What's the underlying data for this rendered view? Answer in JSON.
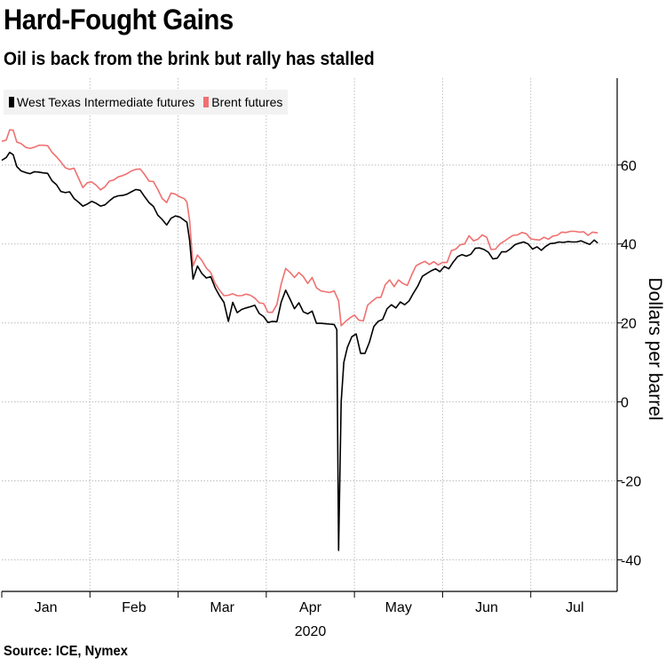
{
  "header": {
    "title": "Hard-Fought Gains",
    "subtitle": "Oil is back from the brink but rally has stalled"
  },
  "footer": {
    "source": "Source: ICE, Nymex"
  },
  "colors": {
    "wti": "#000000",
    "brent": "#f07070",
    "grid": "#bdbdbd",
    "legend_bg": "#f2f2f2"
  },
  "chart_data": {
    "type": "line",
    "title": "Hard-Fought Gains",
    "subtitle": "Oil is back from the brink but rally has stalled",
    "xlabel": "2020",
    "ylabel": "Dollars per barrel",
    "ylim": [
      -48,
      82
    ],
    "yticks": [
      -40,
      -20,
      0,
      20,
      40,
      60
    ],
    "xlim": [
      0,
      6.98
    ],
    "x_unit": "months since Jan 1, 2020",
    "month_labels": [
      "Jan",
      "Feb",
      "Mar",
      "Apr",
      "May",
      "Jun",
      "Jul"
    ],
    "grid": true,
    "legend_position": "top-left",
    "series": [
      {
        "name": "West Texas Intermediate futures",
        "color": "#000000",
        "points": [
          [
            0.0,
            61.2
          ],
          [
            0.05,
            61.9
          ],
          [
            0.09,
            63.2
          ],
          [
            0.13,
            62.6
          ],
          [
            0.17,
            59.6
          ],
          [
            0.22,
            58.5
          ],
          [
            0.27,
            58.1
          ],
          [
            0.32,
            57.8
          ],
          [
            0.37,
            58.3
          ],
          [
            0.42,
            58.2
          ],
          [
            0.47,
            58.0
          ],
          [
            0.52,
            57.9
          ],
          [
            0.57,
            56.0
          ],
          [
            0.62,
            55.0
          ],
          [
            0.67,
            53.3
          ],
          [
            0.72,
            53.0
          ],
          [
            0.77,
            53.2
          ],
          [
            0.82,
            51.5
          ],
          [
            0.87,
            50.6
          ],
          [
            0.92,
            49.6
          ],
          [
            0.97,
            50.1
          ],
          [
            1.02,
            50.8
          ],
          [
            1.07,
            50.3
          ],
          [
            1.12,
            49.6
          ],
          [
            1.17,
            49.9
          ],
          [
            1.22,
            50.9
          ],
          [
            1.27,
            51.8
          ],
          [
            1.32,
            52.2
          ],
          [
            1.37,
            52.3
          ],
          [
            1.42,
            52.6
          ],
          [
            1.47,
            53.2
          ],
          [
            1.52,
            53.8
          ],
          [
            1.57,
            53.6
          ],
          [
            1.62,
            52.0
          ],
          [
            1.67,
            50.5
          ],
          [
            1.72,
            49.5
          ],
          [
            1.77,
            47.3
          ],
          [
            1.82,
            46.2
          ],
          [
            1.87,
            44.8
          ],
          [
            1.92,
            46.5
          ],
          [
            1.97,
            47.1
          ],
          [
            2.02,
            46.8
          ],
          [
            2.07,
            46.0
          ],
          [
            2.1,
            45.5
          ],
          [
            2.13,
            41.0
          ],
          [
            2.17,
            31.1
          ],
          [
            2.22,
            34.4
          ],
          [
            2.27,
            32.5
          ],
          [
            2.32,
            31.4
          ],
          [
            2.37,
            31.7
          ],
          [
            2.42,
            28.9
          ],
          [
            2.47,
            26.9
          ],
          [
            2.52,
            25.2
          ],
          [
            2.57,
            20.4
          ],
          [
            2.62,
            25.2
          ],
          [
            2.67,
            22.6
          ],
          [
            2.72,
            23.4
          ],
          [
            2.77,
            23.8
          ],
          [
            2.82,
            24.1
          ],
          [
            2.87,
            24.5
          ],
          [
            2.92,
            22.4
          ],
          [
            2.97,
            21.6
          ],
          [
            3.02,
            20.1
          ],
          [
            3.07,
            20.4
          ],
          [
            3.12,
            20.3
          ],
          [
            3.17,
            25.3
          ],
          [
            3.22,
            28.3
          ],
          [
            3.27,
            26.0
          ],
          [
            3.32,
            23.6
          ],
          [
            3.37,
            25.1
          ],
          [
            3.42,
            22.8
          ],
          [
            3.47,
            22.3
          ],
          [
            3.52,
            23.0
          ],
          [
            3.57,
            19.9
          ],
          [
            3.62,
            19.9
          ],
          [
            3.67,
            19.8
          ],
          [
            3.72,
            19.7
          ],
          [
            3.77,
            19.6
          ],
          [
            3.8,
            18.3
          ],
          [
            3.82,
            -37.6
          ],
          [
            3.85,
            0.0
          ],
          [
            3.88,
            10.0
          ],
          [
            3.92,
            13.8
          ],
          [
            3.97,
            16.5
          ],
          [
            4.02,
            17.2
          ],
          [
            4.07,
            12.3
          ],
          [
            4.12,
            12.3
          ],
          [
            4.17,
            15.1
          ],
          [
            4.22,
            19.1
          ],
          [
            4.27,
            20.4
          ],
          [
            4.32,
            20.9
          ],
          [
            4.37,
            23.6
          ],
          [
            4.42,
            24.6
          ],
          [
            4.47,
            23.8
          ],
          [
            4.52,
            25.3
          ],
          [
            4.57,
            24.6
          ],
          [
            4.62,
            25.6
          ],
          [
            4.67,
            27.6
          ],
          [
            4.72,
            29.4
          ],
          [
            4.77,
            31.8
          ],
          [
            4.82,
            32.5
          ],
          [
            4.87,
            33.2
          ],
          [
            4.92,
            33.7
          ],
          [
            4.97,
            33.0
          ],
          [
            5.02,
            34.3
          ],
          [
            5.07,
            33.7
          ],
          [
            5.12,
            35.4
          ],
          [
            5.17,
            36.8
          ],
          [
            5.22,
            37.3
          ],
          [
            5.27,
            36.9
          ],
          [
            5.32,
            37.4
          ],
          [
            5.37,
            38.9
          ],
          [
            5.42,
            39.0
          ],
          [
            5.47,
            38.6
          ],
          [
            5.52,
            37.9
          ],
          [
            5.57,
            36.2
          ],
          [
            5.62,
            36.4
          ],
          [
            5.67,
            38.0
          ],
          [
            5.72,
            38.0
          ],
          [
            5.77,
            38.8
          ],
          [
            5.82,
            39.8
          ],
          [
            5.87,
            40.2
          ],
          [
            5.92,
            40.5
          ],
          [
            5.97,
            40.0
          ],
          [
            6.02,
            38.7
          ],
          [
            6.07,
            39.3
          ],
          [
            6.12,
            38.4
          ],
          [
            6.17,
            39.4
          ],
          [
            6.22,
            40.1
          ],
          [
            6.27,
            40.2
          ],
          [
            6.32,
            40.5
          ],
          [
            6.37,
            40.4
          ],
          [
            6.42,
            40.6
          ],
          [
            6.47,
            40.5
          ],
          [
            6.52,
            40.5
          ],
          [
            6.57,
            40.8
          ],
          [
            6.62,
            40.3
          ],
          [
            6.67,
            39.9
          ],
          [
            6.72,
            41.0
          ],
          [
            6.76,
            40.2
          ]
        ]
      },
      {
        "name": "Brent futures",
        "color": "#f07070",
        "points": [
          [
            0.0,
            66.0
          ],
          [
            0.05,
            66.3
          ],
          [
            0.09,
            68.9
          ],
          [
            0.13,
            68.8
          ],
          [
            0.17,
            65.8
          ],
          [
            0.22,
            65.4
          ],
          [
            0.27,
            64.5
          ],
          [
            0.32,
            64.2
          ],
          [
            0.37,
            64.5
          ],
          [
            0.42,
            65.0
          ],
          [
            0.47,
            65.0
          ],
          [
            0.52,
            64.9
          ],
          [
            0.57,
            63.2
          ],
          [
            0.62,
            62.1
          ],
          [
            0.67,
            60.8
          ],
          [
            0.72,
            59.3
          ],
          [
            0.77,
            58.9
          ],
          [
            0.82,
            59.2
          ],
          [
            0.87,
            56.7
          ],
          [
            0.92,
            54.3
          ],
          [
            0.97,
            55.5
          ],
          [
            1.02,
            55.7
          ],
          [
            1.07,
            54.9
          ],
          [
            1.12,
            53.7
          ],
          [
            1.17,
            54.5
          ],
          [
            1.22,
            55.9
          ],
          [
            1.27,
            56.2
          ],
          [
            1.32,
            57.0
          ],
          [
            1.37,
            57.3
          ],
          [
            1.42,
            57.8
          ],
          [
            1.47,
            58.5
          ],
          [
            1.52,
            58.9
          ],
          [
            1.57,
            59.0
          ],
          [
            1.62,
            57.6
          ],
          [
            1.67,
            55.9
          ],
          [
            1.72,
            55.8
          ],
          [
            1.77,
            53.8
          ],
          [
            1.82,
            51.5
          ],
          [
            1.87,
            50.5
          ],
          [
            1.92,
            52.9
          ],
          [
            1.97,
            52.6
          ],
          [
            2.02,
            51.9
          ],
          [
            2.07,
            51.5
          ],
          [
            2.1,
            50.6
          ],
          [
            2.13,
            46.0
          ],
          [
            2.17,
            34.4
          ],
          [
            2.22,
            37.2
          ],
          [
            2.27,
            35.8
          ],
          [
            2.32,
            33.9
          ],
          [
            2.37,
            32.8
          ],
          [
            2.42,
            30.0
          ],
          [
            2.47,
            28.3
          ],
          [
            2.52,
            26.9
          ],
          [
            2.57,
            27.0
          ],
          [
            2.62,
            27.4
          ],
          [
            2.67,
            26.9
          ],
          [
            2.72,
            26.9
          ],
          [
            2.77,
            27.3
          ],
          [
            2.82,
            27.0
          ],
          [
            2.87,
            26.3
          ],
          [
            2.92,
            25.1
          ],
          [
            2.97,
            24.9
          ],
          [
            3.02,
            22.7
          ],
          [
            3.07,
            22.7
          ],
          [
            3.12,
            24.7
          ],
          [
            3.17,
            29.9
          ],
          [
            3.22,
            33.8
          ],
          [
            3.27,
            32.8
          ],
          [
            3.32,
            31.5
          ],
          [
            3.37,
            32.8
          ],
          [
            3.42,
            31.7
          ],
          [
            3.47,
            30.0
          ],
          [
            3.52,
            31.5
          ],
          [
            3.57,
            28.9
          ],
          [
            3.62,
            28.1
          ],
          [
            3.67,
            27.9
          ],
          [
            3.72,
            27.7
          ],
          [
            3.77,
            28.1
          ],
          [
            3.82,
            25.6
          ],
          [
            3.85,
            19.3
          ],
          [
            3.9,
            20.4
          ],
          [
            3.95,
            21.3
          ],
          [
            4.0,
            22.0
          ],
          [
            4.05,
            20.7
          ],
          [
            4.1,
            20.5
          ],
          [
            4.15,
            24.5
          ],
          [
            4.2,
            25.5
          ],
          [
            4.25,
            26.4
          ],
          [
            4.3,
            26.5
          ],
          [
            4.35,
            29.7
          ],
          [
            4.4,
            30.9
          ],
          [
            4.45,
            29.2
          ],
          [
            4.5,
            30.9
          ],
          [
            4.55,
            30.0
          ],
          [
            4.6,
            29.5
          ],
          [
            4.65,
            32.2
          ],
          [
            4.7,
            34.5
          ],
          [
            4.75,
            35.1
          ],
          [
            4.8,
            35.6
          ],
          [
            4.85,
            34.8
          ],
          [
            4.9,
            35.5
          ],
          [
            4.95,
            34.7
          ],
          [
            5.0,
            35.3
          ],
          [
            5.05,
            35.3
          ],
          [
            5.1,
            38.3
          ],
          [
            5.15,
            38.7
          ],
          [
            5.2,
            39.8
          ],
          [
            5.25,
            40.0
          ],
          [
            5.3,
            42.1
          ],
          [
            5.35,
            40.8
          ],
          [
            5.4,
            41.2
          ],
          [
            5.45,
            42.3
          ],
          [
            5.5,
            41.7
          ],
          [
            5.55,
            38.6
          ],
          [
            5.6,
            38.7
          ],
          [
            5.65,
            40.0
          ],
          [
            5.7,
            40.7
          ],
          [
            5.75,
            41.5
          ],
          [
            5.8,
            42.2
          ],
          [
            5.85,
            42.3
          ],
          [
            5.9,
            42.9
          ],
          [
            5.95,
            42.6
          ],
          [
            6.0,
            41.3
          ],
          [
            6.05,
            41.1
          ],
          [
            6.1,
            41.0
          ],
          [
            6.15,
            41.7
          ],
          [
            6.2,
            41.2
          ],
          [
            6.25,
            42.0
          ],
          [
            6.3,
            42.2
          ],
          [
            6.35,
            43.0
          ],
          [
            6.4,
            42.9
          ],
          [
            6.45,
            43.2
          ],
          [
            6.5,
            43.2
          ],
          [
            6.55,
            43.0
          ],
          [
            6.6,
            43.1
          ],
          [
            6.65,
            42.2
          ],
          [
            6.7,
            43.0
          ],
          [
            6.76,
            42.8
          ]
        ]
      }
    ]
  }
}
